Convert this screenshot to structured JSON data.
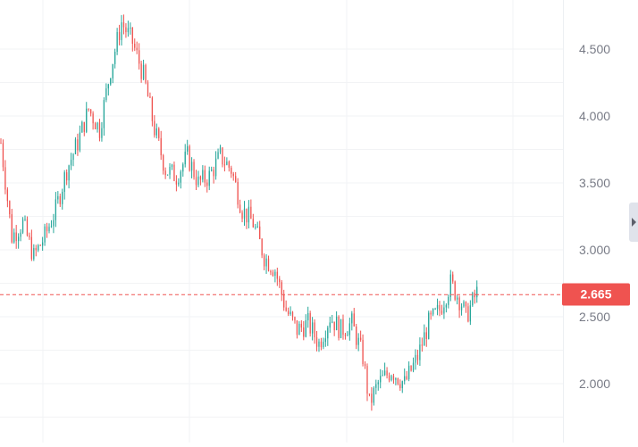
{
  "chart_data": {
    "type": "candlestick",
    "ylim": [
      1.65,
      4.9
    ],
    "y_ticks": [
      "2.000",
      "2.500",
      "3.000",
      "3.500",
      "4.000",
      "4.500"
    ],
    "grid": true,
    "last_price": "2.665",
    "last_price_value": 2.665,
    "colors": {
      "up": "#26a69a",
      "down": "#ef5350",
      "grid": "#f2f3f5",
      "text": "#787b86",
      "price_line": "#ef5350"
    },
    "anchors": [
      [
        0,
        3.8
      ],
      [
        5,
        3.1
      ],
      [
        10,
        3.2
      ],
      [
        15,
        2.95
      ],
      [
        20,
        3.1
      ],
      [
        25,
        3.3
      ],
      [
        30,
        3.6
      ],
      [
        35,
        3.8
      ],
      [
        40,
        4.05
      ],
      [
        45,
        3.9
      ],
      [
        50,
        4.35
      ],
      [
        55,
        4.7
      ],
      [
        60,
        4.55
      ],
      [
        65,
        4.3
      ],
      [
        70,
        3.9
      ],
      [
        75,
        3.6
      ],
      [
        80,
        3.55
      ],
      [
        85,
        3.7
      ],
      [
        90,
        3.5
      ],
      [
        95,
        3.55
      ],
      [
        100,
        3.7
      ],
      [
        105,
        3.6
      ],
      [
        110,
        3.3
      ],
      [
        115,
        3.2
      ],
      [
        120,
        2.95
      ],
      [
        125,
        2.85
      ],
      [
        130,
        2.55
      ],
      [
        135,
        2.4
      ],
      [
        140,
        2.45
      ],
      [
        145,
        2.3
      ],
      [
        150,
        2.5
      ],
      [
        155,
        2.4
      ],
      [
        160,
        2.45
      ],
      [
        165,
        2.2
      ],
      [
        168,
        1.85
      ],
      [
        172,
        2.0
      ],
      [
        178,
        2.1
      ],
      [
        184,
        2.0
      ],
      [
        190,
        2.2
      ],
      [
        195,
        2.45
      ],
      [
        200,
        2.55
      ],
      [
        205,
        2.75
      ],
      [
        210,
        2.6
      ],
      [
        212,
        2.5
      ],
      [
        217,
        2.68
      ]
    ],
    "volatility": 0.075
  }
}
